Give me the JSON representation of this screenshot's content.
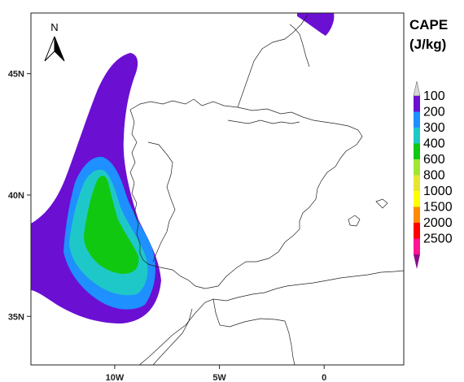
{
  "map": {
    "north_arrow_label": "N",
    "latitude_ticks": [
      {
        "label": "45N",
        "lat": 45
      },
      {
        "label": "40N",
        "lat": 40
      },
      {
        "label": "35N",
        "lat": 35
      }
    ],
    "longitude_ticks": [
      {
        "label": "10W",
        "lon": -10
      },
      {
        "label": "5W",
        "lon": -5
      },
      {
        "label": "0",
        "lon": 0
      }
    ],
    "extent": {
      "lon_min": -14.0,
      "lon_max": 3.8,
      "lat_min": 33.0,
      "lat_max": 47.5
    }
  },
  "legend": {
    "title_line1": "CAPE",
    "title_line2": "(J/kg)",
    "levels": [
      {
        "label": "100",
        "color": "#6b0fd3"
      },
      {
        "label": "200",
        "color": "#1e90ff"
      },
      {
        "label": "300",
        "color": "#1fc8c8"
      },
      {
        "label": "400",
        "color": "#11c811"
      },
      {
        "label": "600",
        "color": "#a0e632"
      },
      {
        "label": "800",
        "color": "#e6e632"
      },
      {
        "label": "1000",
        "color": "#ffff00"
      },
      {
        "label": "1500",
        "color": "#ff8c00"
      },
      {
        "label": "2000",
        "color": "#ff0000"
      },
      {
        "label": "2500",
        "color": "#ff1493"
      }
    ],
    "over_color": "#8b0a8b",
    "under_color": "#d8d8d8"
  }
}
